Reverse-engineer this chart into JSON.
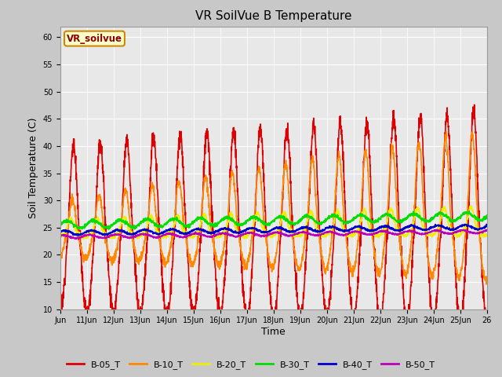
{
  "title": "VR SoilVue B Temperature",
  "xlabel": "Time",
  "ylabel": "Soil Temperature (C)",
  "ylim": [
    10,
    62
  ],
  "yticks": [
    10,
    15,
    20,
    25,
    30,
    35,
    40,
    45,
    50,
    55,
    60
  ],
  "fig_bg": "#c8c8c8",
  "plot_bg": "#e8e8e8",
  "grid_color": "white",
  "annotation_text": "VR_soilvue",
  "annotation_bg": "#ffffcc",
  "annotation_border": "#cc8800",
  "series": {
    "B-05_T": {
      "color": "#dd0000",
      "lw": 1.2
    },
    "B-10_T": {
      "color": "#ff8800",
      "lw": 1.2
    },
    "B-20_T": {
      "color": "#eeee00",
      "lw": 1.2
    },
    "B-30_T": {
      "color": "#00dd00",
      "lw": 1.2
    },
    "B-40_T": {
      "color": "#0000cc",
      "lw": 1.2
    },
    "B-50_T": {
      "color": "#bb00bb",
      "lw": 1.2
    }
  },
  "n_days": 16,
  "start_day": 10,
  "tick_labels": [
    "Jun",
    "11Jun",
    "12Jun",
    "13Jun",
    "14Jun",
    "15Jun",
    "16Jun",
    "17Jun",
    "18Jun",
    "19Jun",
    "20Jun",
    "21Jun",
    "22Jun",
    "23Jun",
    "24Jun",
    "25Jun",
    "26"
  ]
}
